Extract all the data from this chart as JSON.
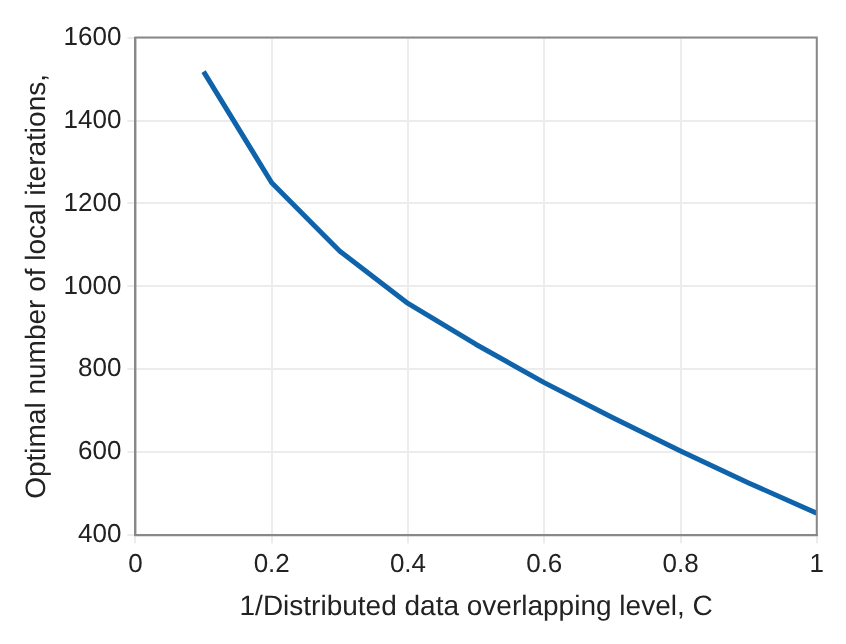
{
  "chart_data": {
    "type": "line",
    "xlabel": "1/Distributed data overlapping level, C",
    "ylabel": "Optimal number of local iterations,",
    "x": [
      0.1,
      0.2,
      0.3,
      0.4,
      0.5,
      0.6,
      0.7,
      0.8,
      0.9,
      1.0
    ],
    "series": [
      {
        "color": "#0e63ab",
        "values": [
          1518,
          1250,
          1085,
          959,
          860,
          768,
          684,
          603,
          526,
          453
        ]
      }
    ],
    "xlim": [
      0,
      1
    ],
    "xticks": [
      0,
      0.2,
      0.4,
      0.6,
      0.8,
      1
    ],
    "ylim": [
      400,
      1600
    ],
    "yticks": [
      400,
      600,
      800,
      1000,
      1200,
      1400,
      1600
    ],
    "grid": true,
    "legend": false,
    "marker": "none",
    "line_style": "solid"
  }
}
